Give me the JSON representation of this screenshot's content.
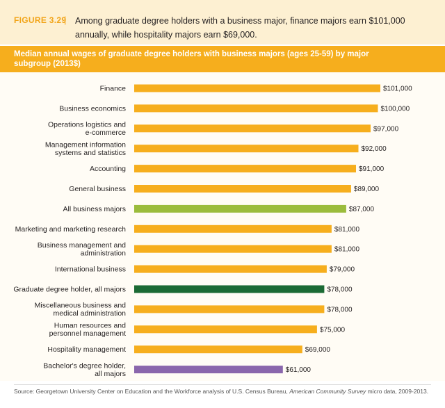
{
  "figure": {
    "label": "FIGURE 3.29",
    "separator": "|",
    "description": "Among graduate degree holders with a business major, finance majors earn $101,000 annually, while hospitality majors earn $69,000."
  },
  "banner": {
    "title": "Median annual wages of graduate degree holders with business majors (ages 25-59) by major subgroup (2013$)"
  },
  "colors": {
    "default": "#f6ae1d",
    "all_business": "#9bbc3c",
    "graduate_all": "#1b6a34",
    "bachelor_all": "#8a66ac"
  },
  "chart_data": {
    "type": "bar",
    "orientation": "horizontal",
    "title": "Median annual wages of graduate degree holders with business majors (ages 25-59) by major subgroup (2013$)",
    "xlim": [
      0,
      101000
    ],
    "grid": false,
    "categories": [
      [
        "Finance"
      ],
      [
        "Business economics"
      ],
      [
        "Operations logistics and",
        "e-commerce"
      ],
      [
        "Management information",
        "systems and statistics"
      ],
      [
        "Accounting"
      ],
      [
        "General business"
      ],
      [
        "All business majors"
      ],
      [
        "Marketing and marketing research"
      ],
      [
        "Business management and",
        "administration"
      ],
      [
        "International business"
      ],
      [
        "Graduate degree holder, all majors"
      ],
      [
        "Miscellaneous business and",
        "medical administration"
      ],
      [
        "Human resources and",
        "personnel management"
      ],
      [
        "Hospitality management"
      ],
      [
        "Bachelor's degree holder,",
        "all majors"
      ]
    ],
    "values": [
      101000,
      100000,
      97000,
      92000,
      91000,
      89000,
      87000,
      81000,
      81000,
      79000,
      78000,
      78000,
      75000,
      69000,
      61000
    ],
    "value_labels": [
      "$101,000",
      "$100,000",
      "$97,000",
      "$92,000",
      "$91,000",
      "$89,000",
      "$87,000",
      "$81,000",
      "$81,000",
      "$79,000",
      "$78,000",
      "$78,000",
      "$75,000",
      "$69,000",
      "$61,000"
    ],
    "bar_colors": [
      "default",
      "default",
      "default",
      "default",
      "default",
      "default",
      "all_business",
      "default",
      "default",
      "default",
      "graduate_all",
      "default",
      "default",
      "default",
      "bachelor_all"
    ]
  },
  "source": {
    "text_before": "Source: Georgetown University Center on Education and the Workforce analysis of U.S. Census Bureau, ",
    "italic": "American Community Survey",
    "text_after": " micro data, 2009-2013."
  }
}
